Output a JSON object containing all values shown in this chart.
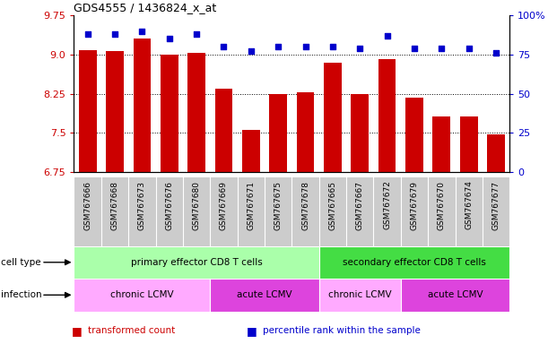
{
  "title": "GDS4555 / 1436824_x_at",
  "samples": [
    "GSM767666",
    "GSM767668",
    "GSM767673",
    "GSM767676",
    "GSM767680",
    "GSM767669",
    "GSM767671",
    "GSM767675",
    "GSM767678",
    "GSM767665",
    "GSM767667",
    "GSM767672",
    "GSM767679",
    "GSM767670",
    "GSM767674",
    "GSM767677"
  ],
  "bar_values": [
    9.08,
    9.06,
    9.3,
    9.0,
    9.04,
    8.35,
    7.55,
    8.25,
    8.28,
    8.85,
    8.25,
    8.92,
    8.18,
    7.82,
    7.82,
    7.47
  ],
  "dot_values": [
    88,
    88,
    90,
    85,
    88,
    80,
    77,
    80,
    80,
    80,
    79,
    87,
    79,
    79,
    79,
    76
  ],
  "ylim_left": [
    6.75,
    9.75
  ],
  "ylim_right": [
    0,
    100
  ],
  "yticks_left": [
    6.75,
    7.5,
    8.25,
    9.0,
    9.75
  ],
  "yticks_right": [
    0,
    25,
    50,
    75,
    100
  ],
  "bar_color": "#cc0000",
  "dot_color": "#0000cc",
  "cell_type_labels": [
    {
      "text": "primary effector CD8 T cells",
      "start": 0,
      "end": 8,
      "color": "#aaffaa"
    },
    {
      "text": "secondary effector CD8 T cells",
      "start": 9,
      "end": 15,
      "color": "#44dd44"
    }
  ],
  "infection_labels": [
    {
      "text": "chronic LCMV",
      "start": 0,
      "end": 4,
      "color": "#ffaaff"
    },
    {
      "text": "acute LCMV",
      "start": 5,
      "end": 8,
      "color": "#dd44dd"
    },
    {
      "text": "chronic LCMV",
      "start": 9,
      "end": 11,
      "color": "#ffaaff"
    },
    {
      "text": "acute LCMV",
      "start": 12,
      "end": 15,
      "color": "#dd44dd"
    }
  ],
  "cell_type_row_label": "cell type",
  "infection_row_label": "infection",
  "legend_items": [
    {
      "label": "transformed count",
      "color": "#cc0000"
    },
    {
      "label": "percentile rank within the sample",
      "color": "#0000cc"
    }
  ],
  "tick_color_left": "#cc0000",
  "tick_color_right": "#0000cc",
  "sample_bg_color": "#cccccc",
  "sample_bg_sep_color": "#ffffff"
}
